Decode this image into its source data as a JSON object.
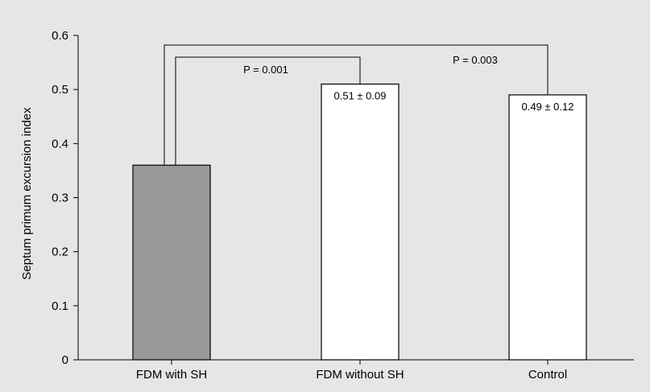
{
  "chart_data": {
    "type": "bar",
    "title": "",
    "xlabel": "",
    "ylabel": "Septum primum excursion index",
    "ylim": [
      0,
      0.6
    ],
    "yticks": [
      "0",
      "0.1",
      "0.2",
      "0.3",
      "0.4",
      "0.5",
      "0.6"
    ],
    "categories": [
      "FDM with SH",
      "FDM without SH",
      "Control"
    ],
    "values": [
      0.36,
      0.51,
      0.49
    ],
    "bar_colors": [
      "#999999",
      "#ffffff",
      "#ffffff"
    ],
    "data_labels": [
      "",
      "0.51 ± 0.09",
      "0.49 ± 0.12"
    ],
    "grid": false,
    "significance": [
      {
        "from": 0,
        "to": 1,
        "label": "P = 0.001"
      },
      {
        "from": 0,
        "to": 2,
        "label": "P = 0.003"
      }
    ]
  },
  "colors": {
    "background": "#e6e6e6",
    "axis": "#000000",
    "bar_stroke": "#000000"
  }
}
